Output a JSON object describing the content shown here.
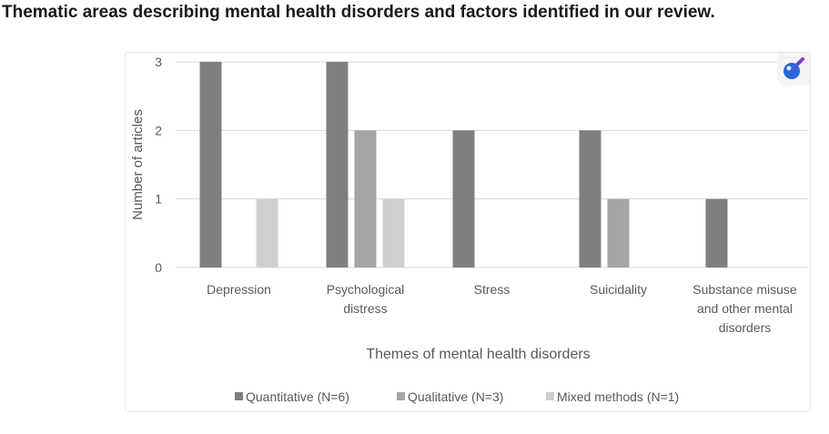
{
  "page": {
    "title": "Thematic areas describing mental health disorders and factors identified in our review."
  },
  "zoom": {
    "icon": "magnifier-icon",
    "color": "#2a66d8",
    "handle_color": "#7b3fc4"
  },
  "chart_data": {
    "type": "bar",
    "xlabel": "Themes of mental health disorders",
    "ylabel": "Number of articles",
    "ylim": [
      0,
      3
    ],
    "yticks": [
      "0",
      "1",
      "2",
      "3"
    ],
    "grid": true,
    "legend_position": "bottom",
    "categories": [
      [
        "Depression"
      ],
      [
        "Psychological",
        "distress"
      ],
      [
        "Stress"
      ],
      [
        "Suicidality"
      ],
      [
        "Substance misuse",
        "and other mental",
        "disorders"
      ]
    ],
    "series": [
      {
        "name": "Quantitative (N=6)",
        "color": "#7f7f7f",
        "values": [
          3,
          3,
          2,
          2,
          1
        ]
      },
      {
        "name": "Qualitative (N=3)",
        "color": "#a5a5a5",
        "values": [
          0,
          2,
          0,
          1,
          0
        ]
      },
      {
        "name": "Mixed methods (N=1)",
        "color": "#cfcfcf",
        "values": [
          1,
          1,
          0,
          0,
          0
        ]
      }
    ]
  }
}
